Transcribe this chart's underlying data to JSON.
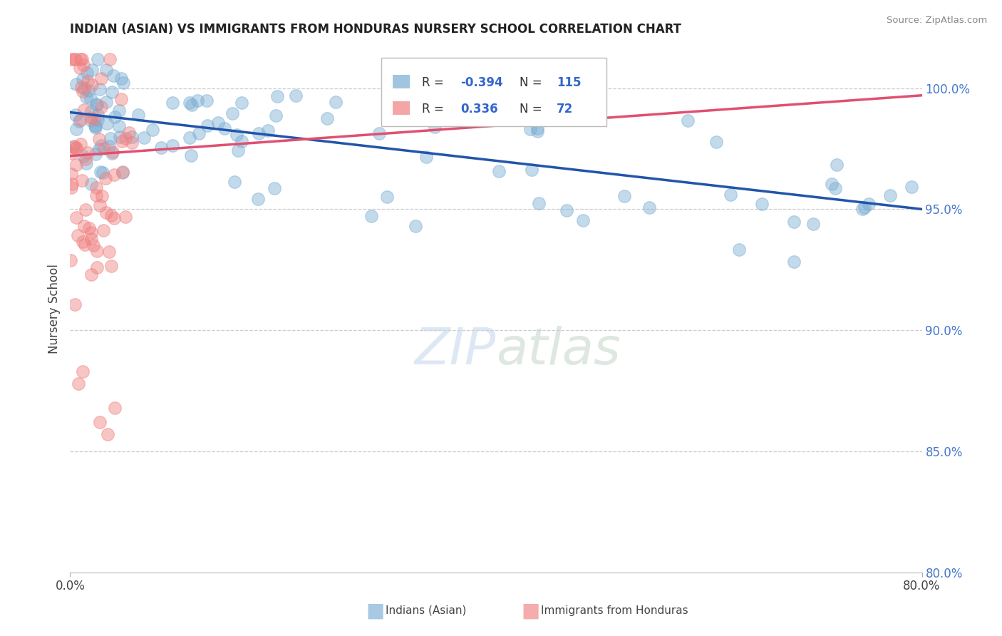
{
  "title": "INDIAN (ASIAN) VS IMMIGRANTS FROM HONDURAS NURSERY SCHOOL CORRELATION CHART",
  "source": "Source: ZipAtlas.com",
  "ylabel": "Nursery School",
  "xmin": 0.0,
  "xmax": 80.0,
  "ymin": 80.0,
  "ymax": 101.8,
  "blue_R": -0.394,
  "blue_N": 115,
  "pink_R": 0.336,
  "pink_N": 72,
  "blue_color": "#7AADD4",
  "pink_color": "#F08080",
  "blue_line_color": "#2255AA",
  "pink_line_color": "#E05070",
  "legend_label_blue": "Indians (Asian)",
  "legend_label_pink": "Immigrants from Honduras",
  "blue_trend_x": [
    0,
    80
  ],
  "blue_trend_y": [
    99.0,
    95.0
  ],
  "pink_trend_x": [
    0,
    80
  ],
  "pink_trend_y": [
    97.2,
    99.7
  ],
  "yticks": [
    80.0,
    85.0,
    90.0,
    95.0,
    100.0
  ],
  "ytick_labels": [
    "80.0%",
    "85.0%",
    "90.0%",
    "95.0%",
    "100.0%"
  ]
}
